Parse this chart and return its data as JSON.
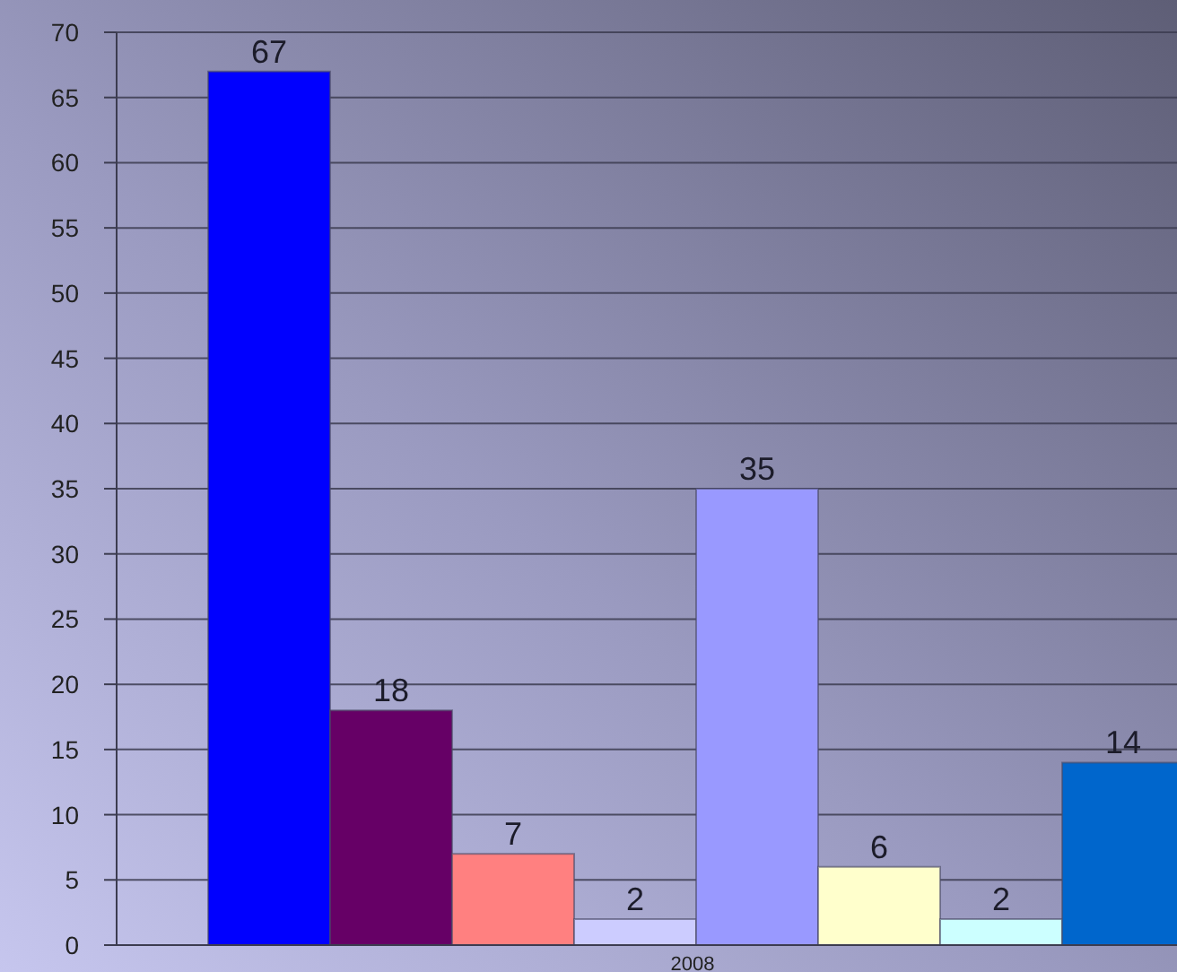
{
  "chart_data": {
    "type": "bar",
    "categories": [
      "2008"
    ],
    "series": [
      {
        "color": "#0000ff",
        "values": [
          67
        ]
      },
      {
        "color": "#660066",
        "values": [
          18
        ]
      },
      {
        "color": "#ff8080",
        "values": [
          7
        ]
      },
      {
        "color": "#ccccff",
        "values": [
          2
        ]
      },
      {
        "color": "#9999ff",
        "values": [
          35
        ]
      },
      {
        "color": "#ffffcc",
        "values": [
          6
        ]
      },
      {
        "color": "#ccffff",
        "values": [
          2
        ]
      },
      {
        "color": "#0066cc",
        "values": [
          14
        ]
      }
    ],
    "ylim": [
      0,
      70
    ],
    "yticks": [
      0,
      5,
      10,
      15,
      20,
      25,
      30,
      35,
      40,
      45,
      50,
      55,
      60,
      65,
      70
    ],
    "grid": "y",
    "data_labels": true
  }
}
